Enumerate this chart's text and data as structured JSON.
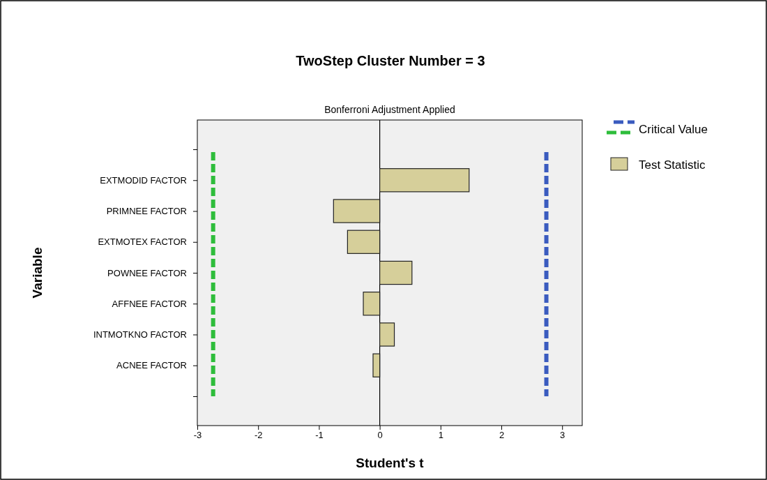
{
  "chart_data": {
    "type": "bar",
    "orientation": "horizontal",
    "title": "TwoStep Cluster Number = 3",
    "subtitle": "Bonferroni Adjustment Applied",
    "xlabel": "Student's t",
    "ylabel": "Variable",
    "categories": [
      null,
      "EXTMODID FACTOR",
      "PRIMNEE FACTOR",
      "EXTMOTEX FACTOR",
      "POWNEE FACTOR",
      "AFFNEE FACTOR",
      "INTMOTKNO FACTOR",
      "ACNEE FACTOR",
      null
    ],
    "series": [
      {
        "name": "Test Statistic",
        "color": "#d6cf9a",
        "values": [
          null,
          1.47,
          -0.76,
          -0.53,
          0.53,
          -0.27,
          0.24,
          -0.11,
          null
        ]
      }
    ],
    "xlim": [
      -3,
      3.33
    ],
    "xticks": [
      -3,
      -2,
      -1,
      0,
      1,
      2,
      3
    ],
    "ref_lines": [
      {
        "axis": "x",
        "value": 2.74,
        "label": "Critical Value",
        "color": "#3a5bbf",
        "line_style": "dashed"
      },
      {
        "axis": "x",
        "value": -2.74,
        "color": "#2ebd3b",
        "line_style": "dashed"
      },
      {
        "axis": "x",
        "value": 0,
        "color": "#000000",
        "line_style": "solid"
      }
    ],
    "legend": "right",
    "grid": false
  }
}
